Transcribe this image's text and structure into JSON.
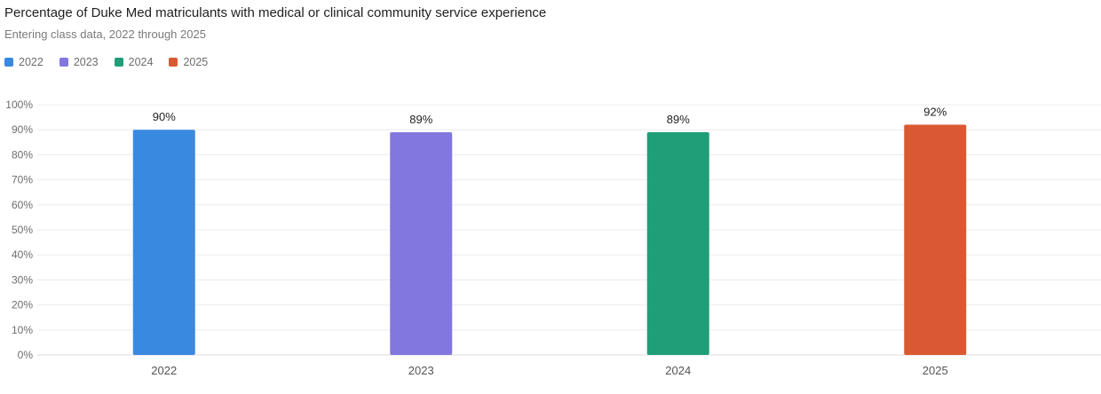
{
  "chart_data": {
    "type": "bar",
    "title": "Percentage of Duke Med matriculants with medical or clinical community service experience",
    "subtitle": "Entering class data, 2022 through 2025",
    "categories": [
      "2022",
      "2023",
      "2024",
      "2025"
    ],
    "values": [
      90,
      89,
      89,
      92
    ],
    "data_labels": [
      "90%",
      "89%",
      "89%",
      "92%"
    ],
    "colors": [
      "#3a89e0",
      "#8277de",
      "#1f9e77",
      "#d95a32"
    ],
    "ylim": [
      0,
      100
    ],
    "yticks": [
      "0%",
      "10%",
      "20%",
      "30%",
      "40%",
      "50%",
      "60%",
      "70%",
      "80%",
      "90%",
      "100%"
    ],
    "legend": {
      "position": "top-left",
      "entries": [
        "2022",
        "2023",
        "2024",
        "2025"
      ]
    },
    "grid": true
  }
}
